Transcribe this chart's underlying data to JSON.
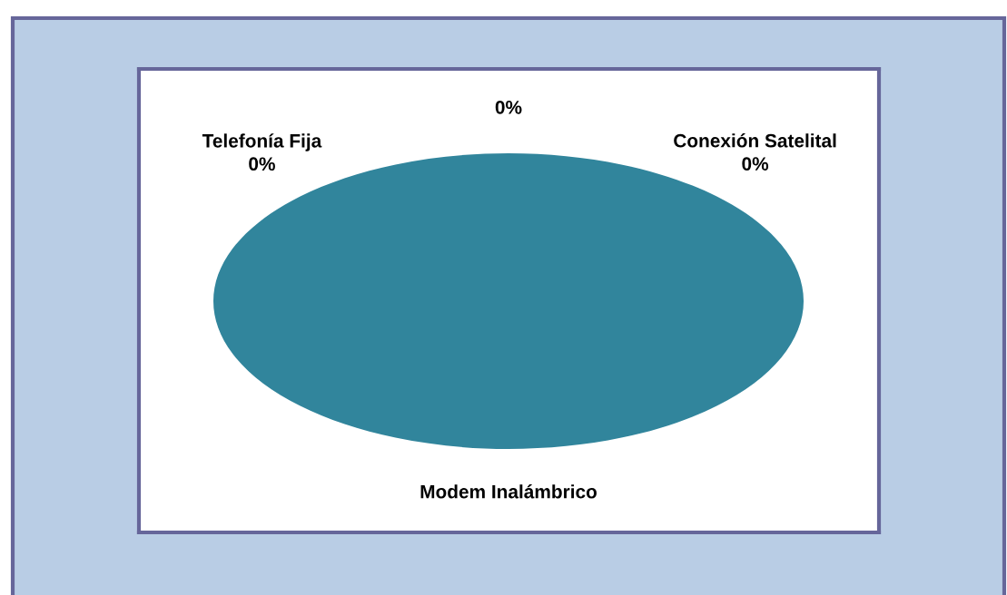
{
  "chart_data": {
    "type": "pie",
    "categories": [
      "Telefonía Fija",
      null,
      "Conexión Satelital",
      "Modem Inalámbrico"
    ],
    "values": [
      0,
      0,
      0,
      100
    ],
    "colors": [
      "#31859c",
      "#31859c",
      "#31859c",
      "#31859c"
    ],
    "value_labels": [
      "0%",
      "0%",
      "0%",
      null
    ]
  }
}
